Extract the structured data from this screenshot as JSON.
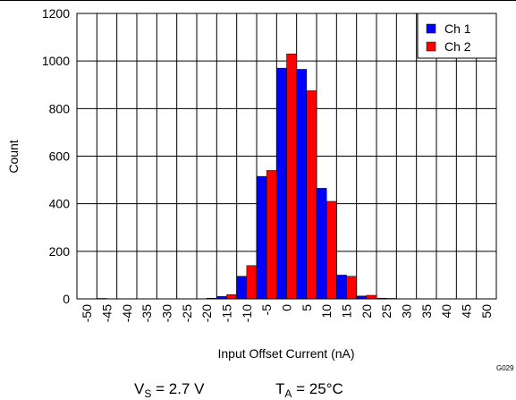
{
  "chart_data": {
    "type": "bar",
    "xlabel": "Input Offset Current (nA)",
    "ylabel": "Count",
    "categories": [
      -50,
      -45,
      -40,
      -35,
      -30,
      -25,
      -20,
      -15,
      -10,
      -5,
      0,
      5,
      10,
      15,
      20,
      25,
      30,
      35,
      40,
      45,
      50
    ],
    "series": [
      {
        "name": "Ch 1",
        "color": "#0000ff",
        "values": [
          1,
          2,
          1,
          0,
          0,
          1,
          1,
          10,
          95,
          515,
          970,
          965,
          465,
          100,
          12,
          3,
          1,
          1,
          0,
          0,
          0
        ]
      },
      {
        "name": "Ch 2",
        "color": "#ff0000",
        "values": [
          1,
          1,
          1,
          0,
          0,
          1,
          3,
          18,
          140,
          540,
          1030,
          875,
          410,
          95,
          15,
          2,
          0,
          1,
          0,
          0,
          1
        ]
      }
    ],
    "ylim": [
      0,
      1200
    ],
    "yticks": [
      0,
      200,
      400,
      600,
      800,
      1000,
      1200
    ],
    "grid": true,
    "legend": "upper right",
    "annotations": {
      "code": "G029",
      "vs": {
        "main": "V",
        "sub": "S",
        "rest": " = 2.7 V"
      },
      "ta": {
        "main": "T",
        "sub": "A",
        "rest": " = 25°C"
      }
    }
  }
}
